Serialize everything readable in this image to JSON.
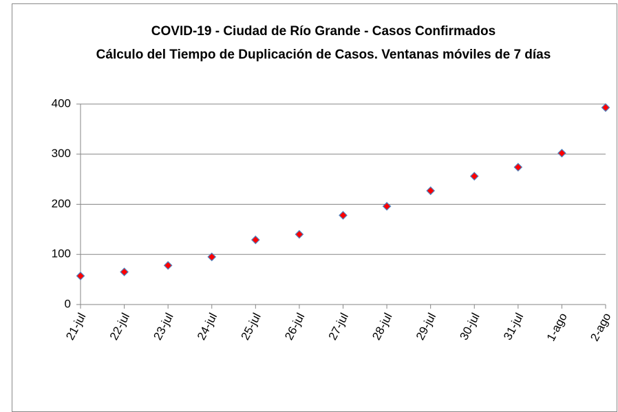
{
  "chart_data": {
    "type": "scatter",
    "title": [
      "COVID-19  - Ciudad de Río Grande - Casos Confirmados",
      "Cálculo  del Tiempo de Duplicación de Casos. Ventanas móviles de 7 días"
    ],
    "categories": [
      "21-jul",
      "22-jul",
      "23-jul",
      "24-jul",
      "25-jul",
      "26-jul",
      "27-jul",
      "28-jul",
      "29-jul",
      "30-jul",
      "31-jul",
      "1-ago",
      "2-ago"
    ],
    "values": [
      57,
      65,
      78,
      95,
      129,
      140,
      178,
      196,
      227,
      256,
      274,
      302,
      393
    ],
    "marker": "diamond",
    "color": "#ff0000",
    "edge_color": "#4f81bd",
    "ylim": [
      0,
      400
    ],
    "yticks": [
      0,
      100,
      200,
      300,
      400
    ],
    "grid": true
  }
}
